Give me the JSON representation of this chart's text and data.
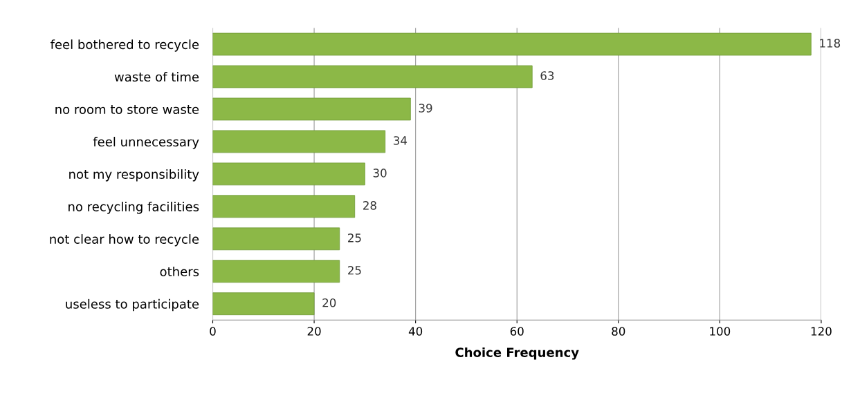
{
  "chart_data": {
    "type": "bar",
    "orientation": "horizontal",
    "xlabel": "Choice Frequency",
    "categories": [
      "feel bothered to recycle",
      "waste of time",
      "no room to store waste",
      "feel unnecessary",
      "not my responsibility",
      "no recycling facilities",
      "not clear how to recycle",
      "others",
      "useless to participate"
    ],
    "values": [
      118,
      63,
      39,
      34,
      30,
      28,
      25,
      25,
      20
    ],
    "color": "#8cb847",
    "data_labels": true,
    "grid": "x",
    "xlim": [
      0,
      120
    ],
    "xticks": [
      0,
      20,
      40,
      60,
      80,
      100,
      120
    ]
  }
}
